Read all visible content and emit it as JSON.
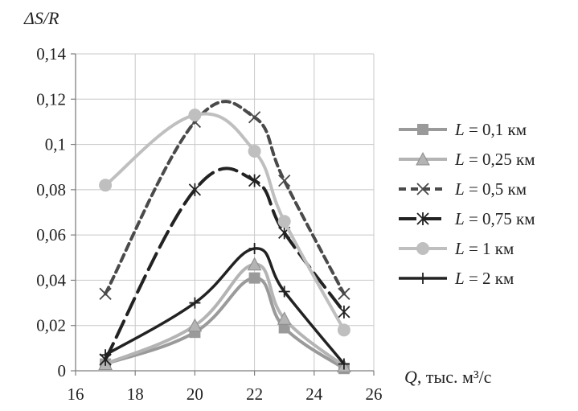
{
  "chart_data": {
    "type": "line",
    "title": "",
    "ylabel": "ΔS/R",
    "xlabel_var": "Q",
    "xlabel_unit": ", тыс. м³/с",
    "xlim": [
      16,
      26
    ],
    "ylim": [
      0,
      0.14
    ],
    "xticks": [
      16,
      18,
      20,
      22,
      24,
      26
    ],
    "xtick_labels": [
      "16",
      "18",
      "20",
      "22",
      "24",
      "26"
    ],
    "yticks": [
      0,
      0.02,
      0.04,
      0.06,
      0.08,
      0.1,
      0.12,
      0.14
    ],
    "ytick_labels": [
      "0",
      "0,02",
      "0,04",
      "0,06",
      "0,08",
      "0,1",
      "0,12",
      "0,14"
    ],
    "grid": true,
    "legend_position": "right",
    "series": [
      {
        "id": "s01",
        "name": "L = 0,1 км",
        "legend_var": "L",
        "legend_rest": " = 0,1 км",
        "color": "#9a9a9a",
        "width": 4,
        "dash": "",
        "marker": "square",
        "x": [
          17,
          20,
          22,
          23,
          25
        ],
        "y": [
          0.003,
          0.017,
          0.041,
          0.019,
          0.001
        ]
      },
      {
        "id": "s025",
        "name": "L = 0,25 км",
        "legend_var": "L",
        "legend_rest": " = 0,25 км",
        "color": "#b4b4b4",
        "width": 4,
        "dash": "",
        "marker": "triangle",
        "x": [
          17,
          20,
          22,
          23,
          25
        ],
        "y": [
          0.003,
          0.02,
          0.047,
          0.023,
          0.002
        ]
      },
      {
        "id": "s05",
        "name": "L = 0,5 км",
        "legend_var": "L",
        "legend_rest": " = 0,5 км",
        "color": "#4a4a4a",
        "width": 4,
        "dash": "9,6",
        "marker": "x",
        "x": [
          17,
          20,
          22,
          23,
          25
        ],
        "y": [
          0.034,
          0.11,
          0.112,
          0.084,
          0.034
        ]
      },
      {
        "id": "s075",
        "name": "L = 0,75 км",
        "legend_var": "L",
        "legend_rest": " = 0,75 км",
        "color": "#222222",
        "width": 4,
        "dash": "22,9",
        "marker": "asterisk",
        "x": [
          17,
          20,
          22,
          23,
          25
        ],
        "y": [
          0.005,
          0.08,
          0.084,
          0.061,
          0.026
        ]
      },
      {
        "id": "s1",
        "name": "L = 1 км",
        "legend_var": "L",
        "legend_rest": " = 1 км",
        "color": "#bfbfbf",
        "width": 4,
        "dash": "",
        "marker": "circle",
        "x": [
          17,
          20,
          22,
          23,
          25
        ],
        "y": [
          0.082,
          0.113,
          0.097,
          0.066,
          0.018
        ]
      },
      {
        "id": "s2",
        "name": "L = 2 км",
        "legend_var": "L",
        "legend_rest": " = 2 км",
        "color": "#222222",
        "width": 3.5,
        "dash": "",
        "marker": "plus",
        "x": [
          17,
          20,
          22,
          23,
          25
        ],
        "y": [
          0.007,
          0.03,
          0.054,
          0.035,
          0.003
        ]
      }
    ]
  }
}
